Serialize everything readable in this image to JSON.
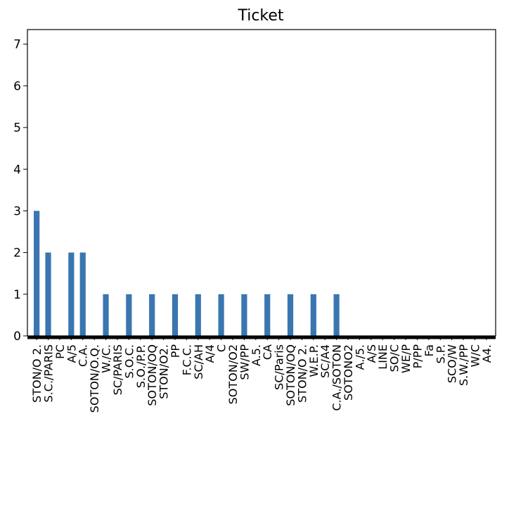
{
  "chart_data": {
    "type": "bar",
    "title": "Ticket",
    "xlabel": "",
    "ylabel": "",
    "ylim": [
      0,
      7.35
    ],
    "yticks": [
      0,
      1,
      2,
      3,
      4,
      5,
      6,
      7
    ],
    "grid": false,
    "legend": "none",
    "colors": {
      "bar": "#3a76b0",
      "axis": "#000000"
    },
    "categories": [
      "STON/O 2.",
      "S.C./PARIS",
      "PC",
      "A/5",
      "C.A.",
      "SOTON/O.Q.",
      "W./C.",
      "SC/PARIS",
      "S.O.C.",
      "S.O./P.P.",
      "SOTON/OQ",
      "STON/O2.",
      "PP",
      "F.C.C.",
      "SC/AH",
      "A/4",
      "C",
      "SOTON/O2",
      "SW/PP",
      "A.5.",
      "CA",
      "SC/Paris",
      "SOTON/OQ",
      "STON/O 2.",
      "W.E.P.",
      "SC/A4",
      "C.A./SOTON",
      "SOTONO2",
      "A./5.",
      "A/S",
      "LINE",
      "SO/C",
      "WE/P",
      "P/PP",
      "Fa",
      "S.P.",
      "SCO/W",
      "S.W./PP",
      "W/C",
      "A4."
    ],
    "values": [
      3,
      2,
      0,
      2,
      2,
      0,
      1,
      0,
      1,
      0,
      1,
      0,
      1,
      0,
      1,
      0,
      1,
      0,
      1,
      0,
      1,
      0,
      1,
      0,
      1,
      0,
      1,
      0,
      0,
      0,
      0,
      0,
      0,
      0,
      0,
      0,
      0,
      0,
      0,
      0
    ]
  }
}
